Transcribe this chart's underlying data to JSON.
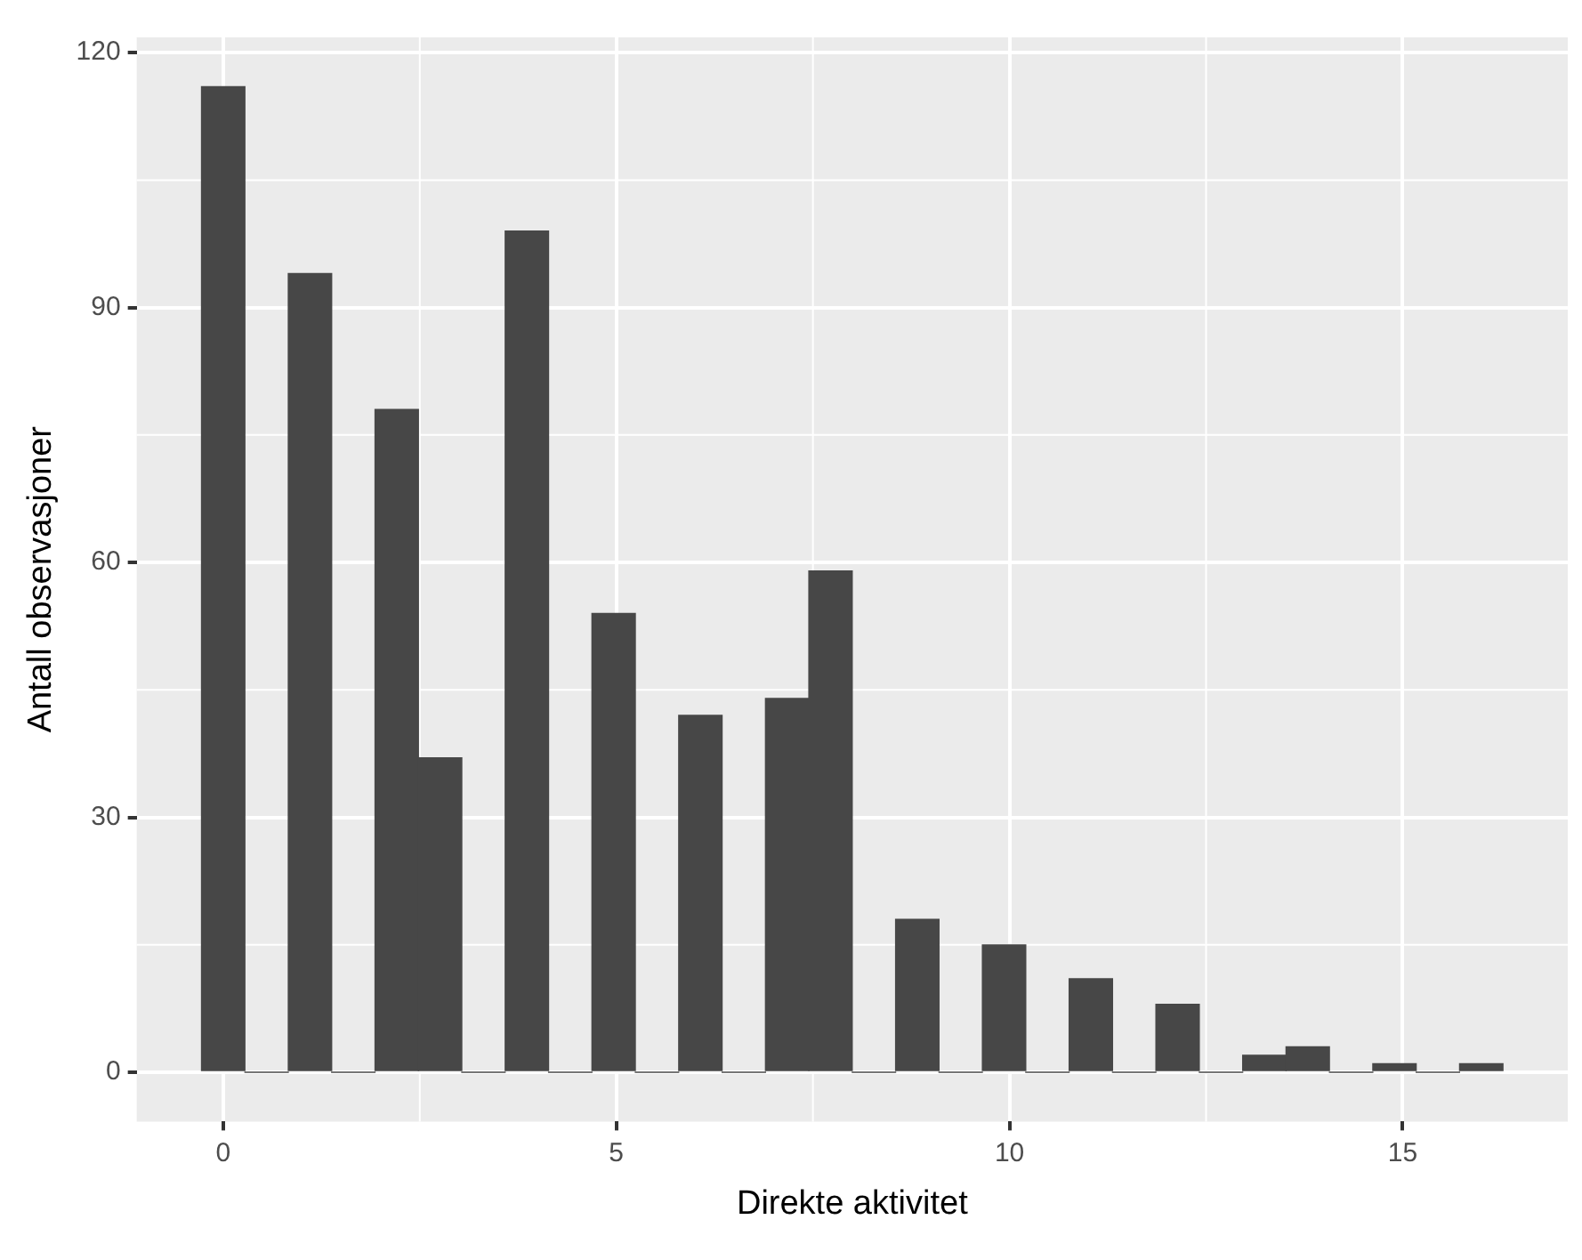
{
  "chart_data": {
    "type": "histogram",
    "xlabel": "Direkte aktivitet",
    "ylabel": "Antall observasjoner",
    "bins": [
      -0.276,
      0.276,
      0.828,
      1.379,
      1.931,
      2.483,
      3.034,
      3.586,
      4.138,
      4.69,
      5.241,
      5.793,
      6.345,
      6.897,
      7.448,
      8.0,
      8.552,
      9.103,
      9.655,
      10.207,
      10.759,
      11.31,
      11.862,
      12.414,
      12.966,
      13.517,
      14.069,
      14.621,
      15.172,
      15.724,
      16.276
    ],
    "values": [
      116,
      0,
      94,
      0,
      78,
      37,
      0,
      99,
      0,
      54,
      0,
      42,
      0,
      44,
      59,
      0,
      18,
      0,
      15,
      0,
      11,
      0,
      8,
      0,
      2,
      3,
      0,
      1,
      0,
      1
    ],
    "color": "#474747",
    "xlim": [
      -1.1,
      17.1
    ],
    "ylim": [
      -5.8,
      121.8
    ],
    "xticks": [
      0,
      5,
      10,
      15
    ],
    "yticks": [
      0,
      30,
      60,
      90,
      120
    ],
    "grid": true
  }
}
